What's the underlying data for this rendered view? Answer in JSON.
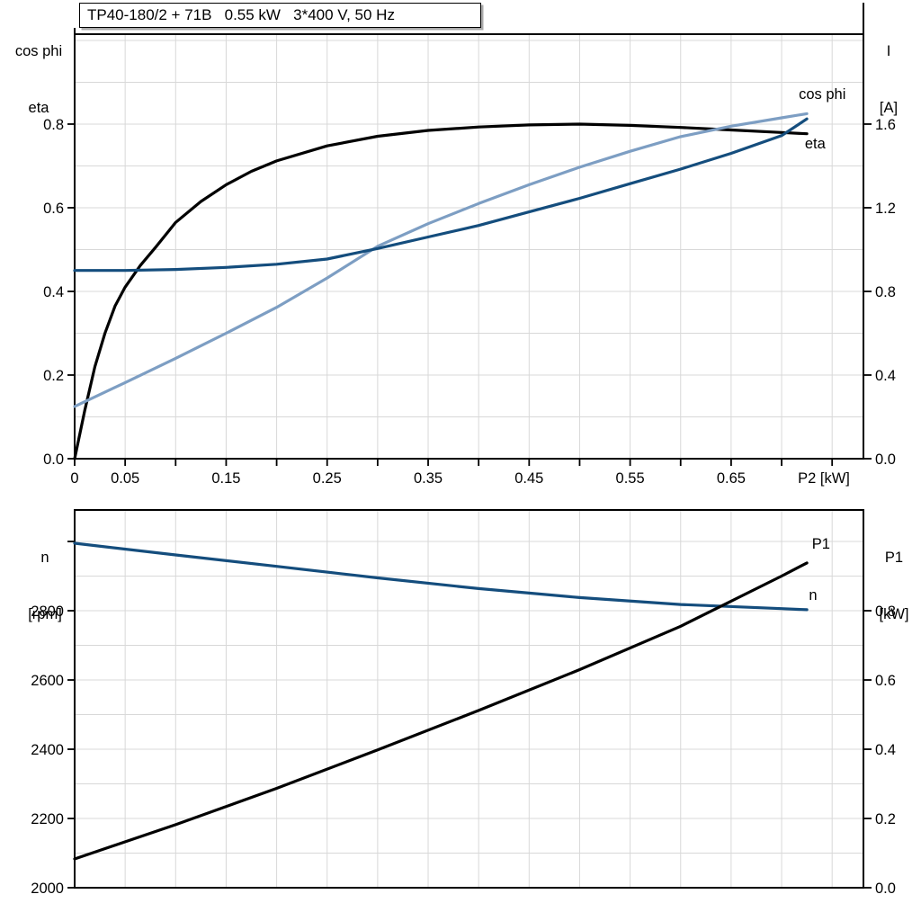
{
  "title_box": {
    "text": "TP40-180/2 + 71B   0.55 kW   3*400 V, 50 Hz"
  },
  "colors": {
    "curve_black": "#000000",
    "curve_dark_blue": "#144D7D",
    "curve_light_blue": "#7D9EC3",
    "n_label_blue": "#2062AC",
    "grid": "#D8D8D8",
    "frame": "#000000"
  },
  "chart_data": [
    {
      "type": "line",
      "name": "motor-performance-chart",
      "title": "TP40-180/2 + 71B   0.55 kW   3*400 V, 50 Hz",
      "x_axis": {
        "label": "P2 [kW]",
        "range": [
          0,
          0.781
        ],
        "grid_step": 0.05,
        "tick_step": 0.05,
        "tick_labels": [
          {
            "v": 0,
            "t": "0"
          },
          {
            "v": 0.05,
            "t": "0.05"
          },
          {
            "v": 0.15,
            "t": "0.15"
          },
          {
            "v": 0.25,
            "t": "0.25"
          },
          {
            "v": 0.35,
            "t": "0.35"
          },
          {
            "v": 0.45,
            "t": "0.45"
          },
          {
            "v": 0.55,
            "t": "0.55"
          },
          {
            "v": 0.65,
            "t": "0.65"
          }
        ]
      },
      "left_axis": {
        "header_line1": "cos phi",
        "header_line2": "eta",
        "range": [
          0,
          1.015
        ],
        "grid_step": 0.1,
        "ticks": [
          {
            "v": 0.0,
            "t": "0.0"
          },
          {
            "v": 0.2,
            "t": "0.2"
          },
          {
            "v": 0.4,
            "t": "0.4"
          },
          {
            "v": 0.6,
            "t": "0.6"
          },
          {
            "v": 0.8,
            "t": "0.8"
          }
        ]
      },
      "right_axis": {
        "header_line1": "I",
        "header_line2": "[A]",
        "range": [
          0,
          2.03
        ],
        "ticks": [
          {
            "v": 0.0,
            "t": "0.0"
          },
          {
            "v": 0.4,
            "t": "0.4"
          },
          {
            "v": 0.8,
            "t": "0.8"
          },
          {
            "v": 1.2,
            "t": "1.2"
          },
          {
            "v": 1.6,
            "t": "1.6"
          }
        ]
      },
      "series": [
        {
          "name": "eta",
          "axis": "left",
          "color_key": "curve_black",
          "x": [
            0,
            0.01,
            0.02,
            0.03,
            0.04,
            0.05,
            0.065,
            0.08,
            0.1,
            0.125,
            0.15,
            0.175,
            0.2,
            0.25,
            0.3,
            0.35,
            0.4,
            0.45,
            0.5,
            0.55,
            0.6,
            0.65,
            0.7,
            0.725
          ],
          "y": [
            0,
            0.115,
            0.22,
            0.3,
            0.365,
            0.41,
            0.462,
            0.505,
            0.565,
            0.615,
            0.655,
            0.687,
            0.712,
            0.748,
            0.771,
            0.785,
            0.793,
            0.798,
            0.8,
            0.797,
            0.792,
            0.786,
            0.78,
            0.777
          ]
        },
        {
          "name": "cos phi",
          "axis": "left",
          "color_key": "curve_light_blue",
          "x": [
            0,
            0.05,
            0.1,
            0.15,
            0.2,
            0.25,
            0.3,
            0.35,
            0.4,
            0.45,
            0.5,
            0.55,
            0.6,
            0.65,
            0.7,
            0.725
          ],
          "y": [
            0.125,
            0.182,
            0.24,
            0.3,
            0.362,
            0.432,
            0.508,
            0.562,
            0.61,
            0.655,
            0.697,
            0.735,
            0.77,
            0.795,
            0.815,
            0.825
          ]
        },
        {
          "name": "I",
          "axis": "right",
          "color_key": "curve_dark_blue",
          "x": [
            0,
            0.05,
            0.1,
            0.15,
            0.2,
            0.25,
            0.3,
            0.35,
            0.4,
            0.45,
            0.5,
            0.55,
            0.6,
            0.65,
            0.7,
            0.725
          ],
          "y": [
            0.9,
            0.9,
            0.905,
            0.915,
            0.93,
            0.955,
            1.005,
            1.06,
            1.115,
            1.18,
            1.245,
            1.315,
            1.385,
            1.46,
            1.545,
            1.625
          ]
        }
      ],
      "annotations": [
        {
          "text": "cos phi",
          "x": 0.717,
          "y": 0.86,
          "axis": "left",
          "color_key": "curve_light_blue"
        },
        {
          "text": "eta",
          "x": 0.723,
          "y": 0.742,
          "axis": "left",
          "color_key": "curve_black"
        }
      ]
    },
    {
      "type": "line",
      "name": "speed-power-chart",
      "title": "",
      "x_axis": {
        "label": "",
        "range": [
          0,
          0.781
        ],
        "grid_step": 0.05,
        "tick_step": null,
        "tick_labels": []
      },
      "left_axis": {
        "header_line1": "n",
        "header_line2": "[rpm]",
        "range": [
          2000,
          3091
        ],
        "grid_step": 100,
        "ticks": [
          {
            "v": 2000,
            "t": "2000"
          },
          {
            "v": 2200,
            "t": "2200"
          },
          {
            "v": 2400,
            "t": "2400"
          },
          {
            "v": 2600,
            "t": "2600"
          },
          {
            "v": 2800,
            "t": "2800"
          },
          {
            "v": 3000,
            "t": ""
          }
        ]
      },
      "right_axis": {
        "header_line1": "P1",
        "header_line2": "[kW]",
        "range": [
          0,
          1.091
        ],
        "ticks": [
          {
            "v": 0.0,
            "t": "0.0"
          },
          {
            "v": 0.2,
            "t": "0.2"
          },
          {
            "v": 0.4,
            "t": "0.4"
          },
          {
            "v": 0.6,
            "t": "0.6"
          },
          {
            "v": 0.8,
            "t": "0.8"
          }
        ]
      },
      "series": [
        {
          "name": "n",
          "axis": "left",
          "color_key": "curve_dark_blue",
          "x": [
            0,
            0.1,
            0.2,
            0.3,
            0.4,
            0.5,
            0.6,
            0.7,
            0.725
          ],
          "y": [
            2995,
            2961,
            2928,
            2895,
            2864,
            2838,
            2818,
            2806,
            2803
          ]
        },
        {
          "name": "P1",
          "axis": "right",
          "color_key": "curve_black",
          "x": [
            0,
            0.1,
            0.2,
            0.3,
            0.4,
            0.5,
            0.6,
            0.7,
            0.725
          ],
          "y": [
            0.083,
            0.182,
            0.287,
            0.398,
            0.512,
            0.63,
            0.755,
            0.9,
            0.938
          ]
        }
      ],
      "annotations": [
        {
          "text": "P1",
          "x": 0.73,
          "y": 2979,
          "axis": "left",
          "color_key": "curve_black"
        },
        {
          "text": "n",
          "x": 0.727,
          "y": 2831,
          "axis": "left",
          "color_key": "n_label_blue"
        }
      ]
    }
  ]
}
